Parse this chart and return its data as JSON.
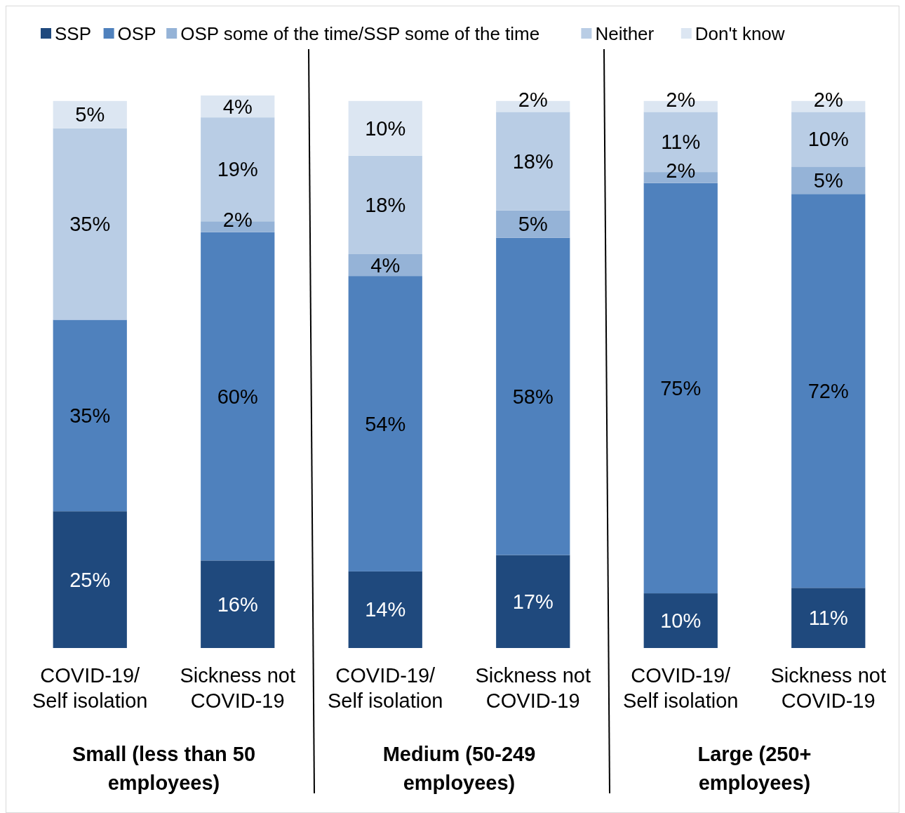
{
  "chart_data": {
    "type": "bar",
    "stacked": true,
    "categories": [
      "COVID-19/\nSelf isolation",
      "Sickness not\nCOVID-19",
      "COVID-19/\nSelf isolation",
      "Sickness not\nCOVID-19",
      "COVID-19/\nSelf isolation",
      "Sickness not\nCOVID-19"
    ],
    "series": [
      {
        "name": "SSP",
        "color": "#1f497d",
        "values": [
          25,
          16,
          14,
          17,
          10,
          11
        ],
        "value_labels": [
          "25%",
          "16%",
          "14%",
          "17%",
          "10%",
          "11%"
        ]
      },
      {
        "name": "OSP",
        "color": "#4f81bd",
        "values": [
          35,
          60,
          54,
          58,
          75,
          72
        ],
        "value_labels": [
          "35%",
          "60%",
          "54%",
          "58%",
          "75%",
          "72%"
        ]
      },
      {
        "name": "OSP some of the time/SSP some of the time",
        "color": "#95b3d7",
        "values": [
          null,
          2,
          4,
          5,
          2,
          5
        ],
        "value_labels": [
          null,
          "2%",
          "4%",
          "5%",
          "2%",
          "5%"
        ]
      },
      {
        "name": "Neither",
        "color": "#b9cde5",
        "values": [
          35,
          19,
          18,
          18,
          11,
          10
        ],
        "value_labels": [
          "35%",
          "19%",
          "18%",
          "18%",
          "11%",
          "10%"
        ]
      },
      {
        "name": "Don't know",
        "color": "#dce6f2",
        "values": [
          5,
          4,
          10,
          2,
          2,
          2
        ],
        "value_labels": [
          "5%",
          "4%",
          "10%",
          "2%",
          "2%",
          "2%"
        ]
      }
    ],
    "ylim": [
      0,
      101
    ],
    "legend": "top",
    "tick_labels": "x",
    "annotations": [
      "Small (less than 50\nemployees)",
      "Medium (50-249\nemployees)",
      "Large (250+\nemployees)"
    ]
  }
}
